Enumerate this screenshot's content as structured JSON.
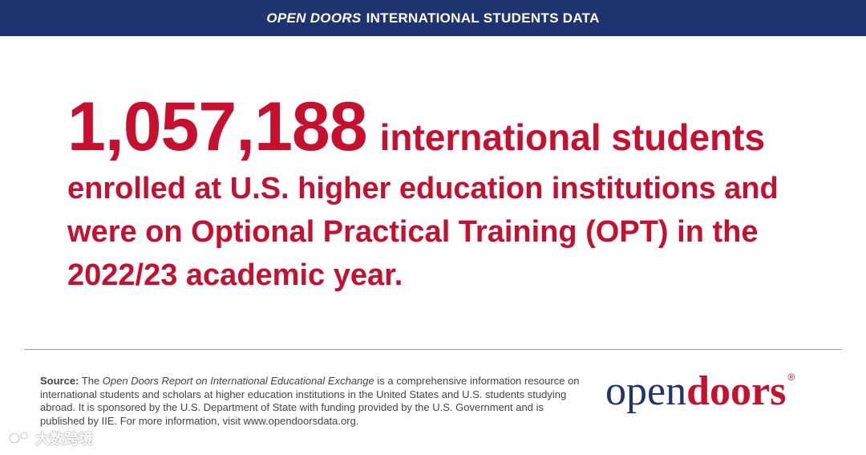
{
  "header": {
    "brand": "OPEN DOORS",
    "title": "INTERNATIONAL STUDENTS DATA"
  },
  "headline": {
    "number": "1,057,188",
    "first_line": "international students",
    "line2": "enrolled at U.S. higher education institutions and",
    "line3": "were on Optional Practical Training (OPT) in the",
    "line4": "2022/23 academic year."
  },
  "source": {
    "label": "Source:",
    "text_before": " The ",
    "report_title": "Open Doors Report on International Educational Exchange",
    "text_after": " is a comprehensive information resource on international students and scholars at higher education institutions in the United States and U.S. students studying abroad. It is sponsored by the U.S. Department of State with funding provided by the U.S. Government and is published by IIE. For more information, visit www.opendoorsdata.org."
  },
  "logo": {
    "part1": "open",
    "part2": "doors",
    "reg_mark": "®"
  },
  "watermark": {
    "text": "大数跨境"
  },
  "colors": {
    "header_bg": "#1f3370",
    "accent_red": "#c8102e",
    "text_gray": "#444444",
    "divider": "#9a9a9a"
  }
}
